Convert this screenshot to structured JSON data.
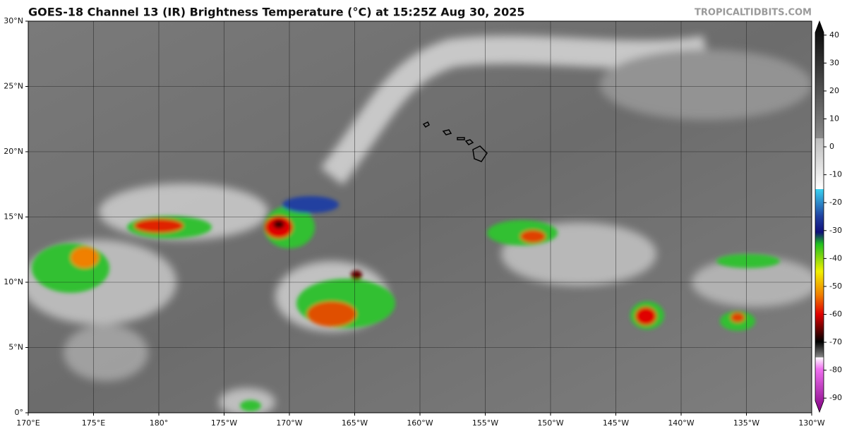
{
  "header": {
    "title": "GOES-18 Channel 13 (IR) Brightness Temperature (°C) at 15:25Z Aug 30, 2025",
    "source": "TROPICALTIDBITS.COM"
  },
  "map": {
    "xlim": [
      170,
      230
    ],
    "ylim": [
      0,
      30
    ],
    "xticks": [
      {
        "value": 170,
        "label": "170°E"
      },
      {
        "value": 175,
        "label": "175°E"
      },
      {
        "value": 180,
        "label": "180°"
      },
      {
        "value": 185,
        "label": "175°W"
      },
      {
        "value": 190,
        "label": "170°W"
      },
      {
        "value": 195,
        "label": "165°W"
      },
      {
        "value": 200,
        "label": "160°W"
      },
      {
        "value": 205,
        "label": "155°W"
      },
      {
        "value": 210,
        "label": "150°W"
      },
      {
        "value": 215,
        "label": "145°W"
      },
      {
        "value": 220,
        "label": "140°W"
      },
      {
        "value": 225,
        "label": "135°W"
      },
      {
        "value": 230,
        "label": "130°W"
      }
    ],
    "yticks": [
      {
        "value": 0,
        "label": "0°"
      },
      {
        "value": 5,
        "label": "5°N"
      },
      {
        "value": 10,
        "label": "10°N"
      },
      {
        "value": 15,
        "label": "15°N"
      },
      {
        "value": 20,
        "label": "20°N"
      },
      {
        "value": 25,
        "label": "25°N"
      },
      {
        "value": 30,
        "label": "30°N"
      }
    ]
  },
  "colorbar": {
    "lim": [
      -95,
      45
    ],
    "ticks": [
      40,
      30,
      20,
      10,
      0,
      -10,
      -20,
      -30,
      -40,
      -50,
      -60,
      -70,
      -80,
      -90
    ]
  }
}
